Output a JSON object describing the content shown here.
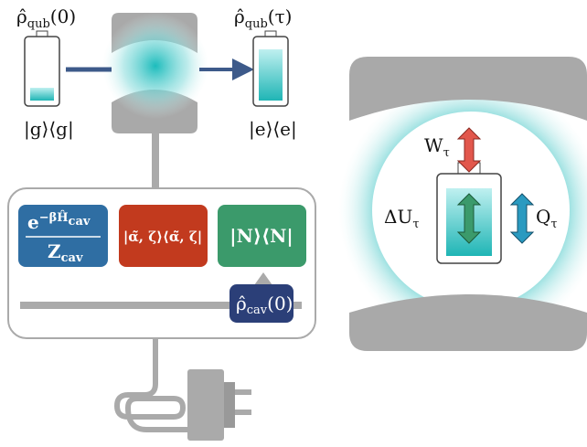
{
  "qubit_initial": {
    "symbol": "ρ̂",
    "sub": "qub",
    "arg": "(0)",
    "state": "|g⟩⟨g|"
  },
  "qubit_final": {
    "symbol": "ρ̂",
    "sub": "qub",
    "arg": "(τ)",
    "state": "|e⟩⟨e|"
  },
  "cavity_states": {
    "thermal": {
      "base": "e",
      "sup": "−βĤ",
      "sup_sub": "cav",
      "den": "Z",
      "den_sub": "cav"
    },
    "squeezed": "|α̃, ζ⟩⟨α̃, ζ|",
    "fock": "|N⟩⟨N|",
    "selected": {
      "symbol": "ρ̂",
      "sub": "cav",
      "arg": "(0)"
    }
  },
  "energetics": {
    "work": {
      "symbol": "W",
      "sub": "τ"
    },
    "internal": {
      "symbol": "ΔU",
      "sub": "τ"
    },
    "heat": {
      "symbol": "Q",
      "sub": "τ"
    }
  }
}
